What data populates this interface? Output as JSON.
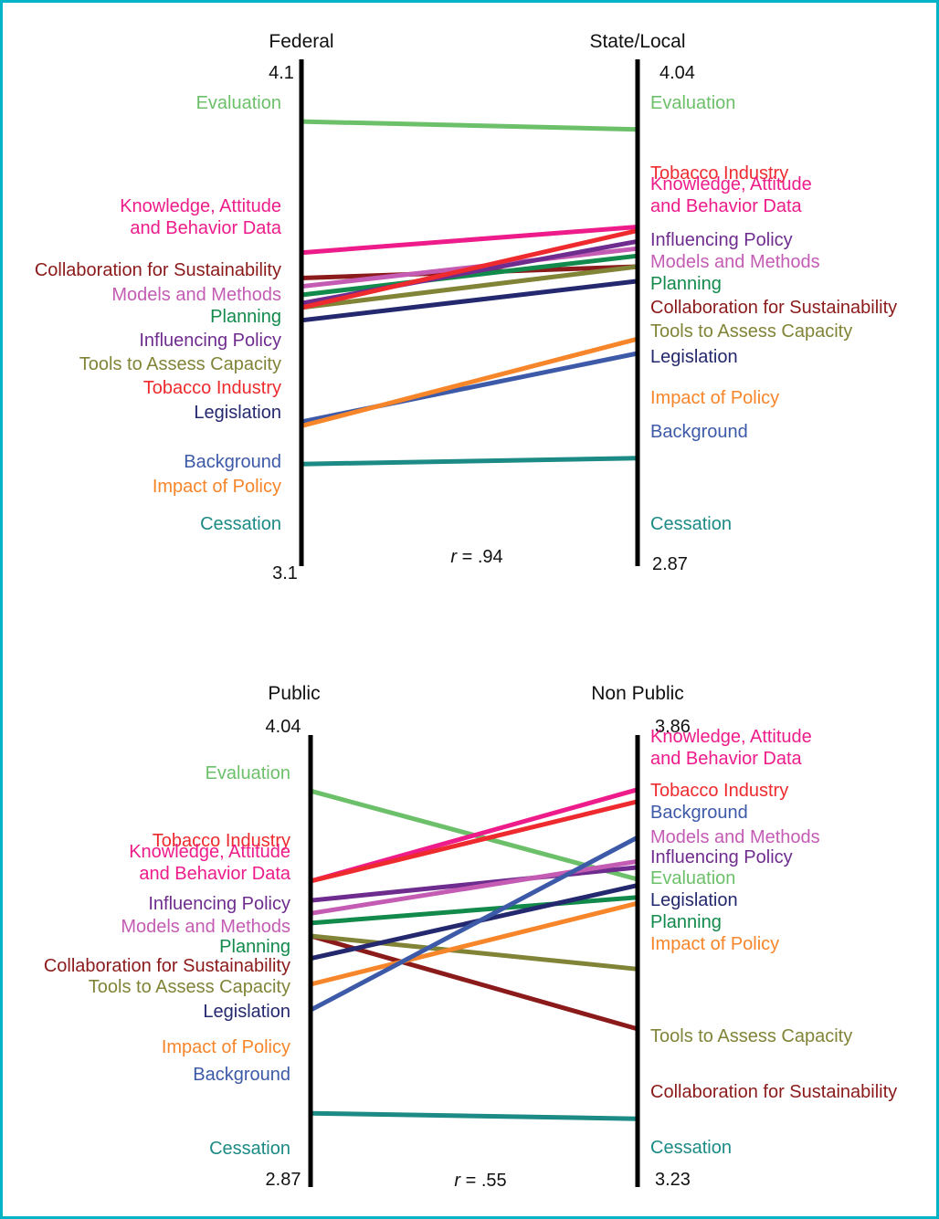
{
  "chart_data": [
    {
      "type": "parallel-slope",
      "left_axis": {
        "name": "Federal",
        "max": 4.1,
        "min": 3.1,
        "max_label": "4.1",
        "min_label": "3.1"
      },
      "right_axis": {
        "name": "State/Local",
        "max": 4.04,
        "min": 2.87,
        "max_label": "4.04",
        "min_label": "2.87"
      },
      "correlation": {
        "prefix": "r",
        "text": " = .94"
      },
      "series": [
        {
          "name": "Evaluation",
          "color": "#6cc06a",
          "left": 4.05,
          "right": 3.96
        },
        {
          "name": "Knowledge, Attitude and Behavior Data",
          "label_lines": [
            "Knowledge, Attitude",
            "and Behavior Data"
          ],
          "color": "#ee1c8b",
          "left": 3.74,
          "right": 3.69
        },
        {
          "name": "Collaboration for Sustainability",
          "color": "#8b1a1a",
          "left": 3.68,
          "right": 3.58
        },
        {
          "name": "Models and Methods",
          "color": "#c45cb4",
          "left": 3.66,
          "right": 3.63
        },
        {
          "name": "Planning",
          "color": "#128a4c",
          "left": 3.64,
          "right": 3.61
        },
        {
          "name": "Influencing Policy",
          "color": "#6f2c8f",
          "left": 3.62,
          "right": 3.65
        },
        {
          "name": "Tools to Assess Capacity",
          "color": "#818437",
          "left": 3.61,
          "right": 3.58
        },
        {
          "name": "Tobacco Industry",
          "color": "#ee2a2e",
          "left": 3.61,
          "right": 3.68
        },
        {
          "name": "Legislation",
          "color": "#24286e",
          "left": 3.58,
          "right": 3.54
        },
        {
          "name": "Background",
          "color": "#3d5aa8",
          "left": 3.34,
          "right": 3.34
        },
        {
          "name": "Impact of Policy",
          "color": "#f7852a",
          "left": 3.33,
          "right": 3.38
        },
        {
          "name": "Cessation",
          "color": "#1c8a85",
          "left": 3.24,
          "right": 3.05
        }
      ],
      "left_labels_order": [
        "Evaluation",
        "Knowledge, Attitude and Behavior Data",
        "Collaboration for Sustainability",
        "Models and Methods",
        "Planning",
        "Influencing Policy",
        "Tools to Assess Capacity",
        "Tobacco Industry",
        "Legislation",
        "Background",
        "Impact of Policy",
        "Cessation"
      ],
      "right_labels_order": [
        "Evaluation",
        "Tobacco Industry",
        "Knowledge, Attitude and Behavior Data",
        "Influencing Policy",
        "Models and Methods",
        "Planning",
        "Collaboration for Sustainability",
        "Tools to Assess Capacity",
        "Legislation",
        "Impact of Policy",
        "Background",
        "Cessation"
      ]
    },
    {
      "type": "parallel-slope",
      "left_axis": {
        "name": "Public",
        "max": 4.04,
        "min": 2.87,
        "max_label": "4.04",
        "min_label": "2.87"
      },
      "right_axis": {
        "name": "Non Public",
        "max": 3.86,
        "min": 3.23,
        "max_label": "3.86",
        "min_label": "3.23"
      },
      "correlation": {
        "prefix": "r",
        "text": " = .55"
      },
      "series": [
        {
          "name": "Evaluation",
          "color": "#6cc06a",
          "left": 3.98,
          "right": 3.68
        },
        {
          "name": "Knowledge, Attitude and Behavior Data",
          "label_lines": [
            "Knowledge, Attitude",
            "and Behavior Data"
          ],
          "color": "#ee1c8b",
          "left": 3.7,
          "right": 3.83
        },
        {
          "name": "Tobacco Industry",
          "color": "#ee2a2e",
          "left": 3.7,
          "right": 3.81
        },
        {
          "name": "Influencing Policy",
          "color": "#6f2c8f",
          "left": 3.64,
          "right": 3.7
        },
        {
          "name": "Models and Methods",
          "color": "#c45cb4",
          "left": 3.6,
          "right": 3.71
        },
        {
          "name": "Planning",
          "color": "#128a4c",
          "left": 3.57,
          "right": 3.65
        },
        {
          "name": "Collaboration for Sustainability",
          "color": "#8b1a1a",
          "left": 3.53,
          "right": 3.43
        },
        {
          "name": "Tools to Assess Capacity",
          "color": "#818437",
          "left": 3.53,
          "right": 3.53
        },
        {
          "name": "Legislation",
          "color": "#24286e",
          "left": 3.46,
          "right": 3.67
        },
        {
          "name": "Impact of Policy",
          "color": "#f7852a",
          "left": 3.38,
          "right": 3.64
        },
        {
          "name": "Background",
          "color": "#3d5aa8",
          "left": 3.3,
          "right": 3.75
        },
        {
          "name": "Cessation",
          "color": "#1c8a85",
          "left": 2.98,
          "right": 3.28
        }
      ],
      "left_labels_order": [
        "Evaluation",
        "Tobacco Industry",
        "Knowledge, Attitude and Behavior Data",
        "Influencing Policy",
        "Models and Methods",
        "Planning",
        "Collaboration for Sustainability",
        "Tools to Assess Capacity",
        "Legislation",
        "Impact of Policy",
        "Background",
        "Cessation"
      ],
      "right_labels_order": [
        "Knowledge, Attitude and Behavior Data",
        "Tobacco Industry",
        "Background",
        "Models and Methods",
        "Influencing Policy",
        "Evaluation",
        "Legislation",
        "Planning",
        "Impact of Policy",
        "Tools to Assess Capacity",
        "Collaboration for Sustainability",
        "Cessation"
      ]
    }
  ]
}
